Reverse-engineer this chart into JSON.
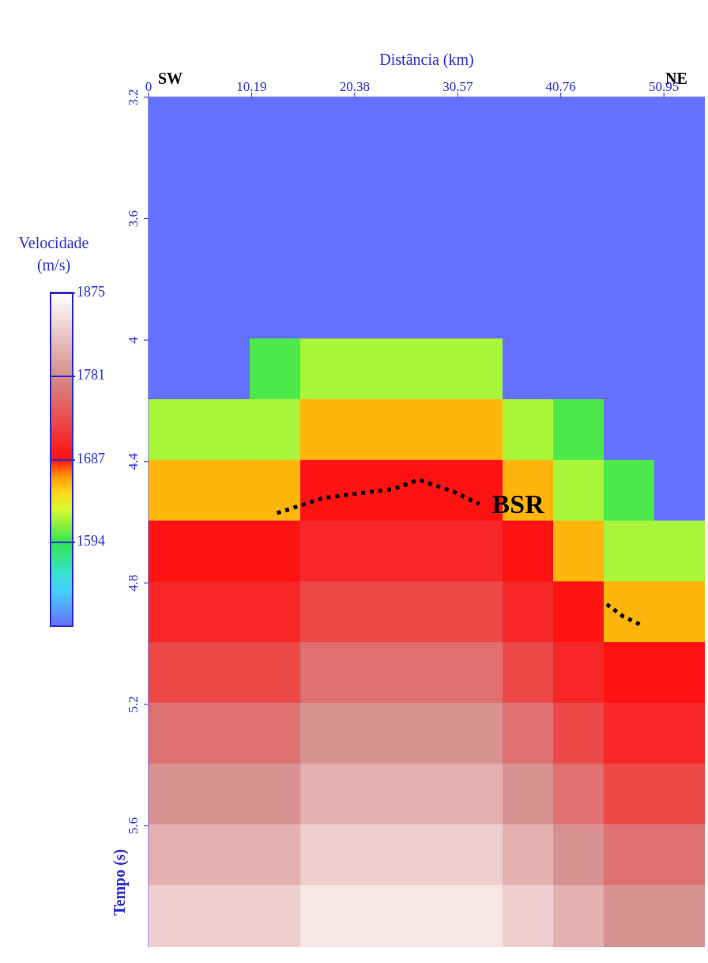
{
  "chart_data": {
    "type": "heatmap",
    "xlabel": "Distância (km)",
    "ylabel": "Tempo (s)",
    "clabel": "Velocidade (m/s)",
    "annotations": [
      "SW",
      "NE"
    ],
    "x": [
      2.5,
      7.5,
      12.5,
      17.5,
      22.5,
      27.5,
      32.5,
      37.5,
      42.5,
      47.5,
      52.5
    ],
    "y": [
      3.3,
      3.5,
      3.7,
      3.9,
      4.1,
      4.3,
      4.5,
      4.7,
      4.9,
      5.1,
      5.3,
      5.5,
      5.7,
      5.9
    ],
    "xlim": [
      0,
      55
    ],
    "xticks": [
      0,
      10.19,
      20.38,
      30.57,
      40.76,
      50.95
    ],
    "ylim": [
      6.0,
      3.2
    ],
    "yticks": [
      3.2,
      3.6,
      4,
      4.4,
      4.8,
      5.2,
      5.6
    ],
    "clim": [
      1500,
      1875
    ],
    "cticks": [
      1594,
      1687,
      1781,
      1875
    ],
    "cells": [
      [
        1500,
        1500,
        1500,
        1500,
        1500,
        1500,
        1500,
        1500,
        1500,
        1500,
        1500
      ],
      [
        1500,
        1500,
        1500,
        1500,
        1500,
        1500,
        1500,
        1500,
        1500,
        1500,
        1500
      ],
      [
        1500,
        1500,
        1500,
        1500,
        1500,
        1500,
        1500,
        1500,
        1500,
        1500,
        1500
      ],
      [
        1500,
        1500,
        1500,
        1500,
        1500,
        1500,
        1500,
        1500,
        1500,
        1500,
        1500
      ],
      [
        1500,
        1500,
        1600,
        1620,
        1620,
        1620,
        1620,
        1500,
        1500,
        1500,
        1500
      ],
      [
        1620,
        1620,
        1620,
        1660,
        1660,
        1660,
        1660,
        1620,
        1600,
        1500,
        1500
      ],
      [
        1660,
        1660,
        1660,
        1690,
        1690,
        1690,
        1690,
        1660,
        1620,
        1600,
        1500
      ],
      [
        1690,
        1690,
        1690,
        1705,
        1705,
        1705,
        1705,
        1690,
        1660,
        1620,
        1620
      ],
      [
        1705,
        1705,
        1705,
        1730,
        1730,
        1730,
        1730,
        1705,
        1690,
        1660,
        1660
      ],
      [
        1730,
        1730,
        1730,
        1760,
        1760,
        1760,
        1760,
        1730,
        1705,
        1690,
        1690
      ],
      [
        1760,
        1760,
        1760,
        1785,
        1785,
        1785,
        1785,
        1760,
        1730,
        1705,
        1705
      ],
      [
        1785,
        1785,
        1785,
        1810,
        1810,
        1810,
        1810,
        1785,
        1760,
        1730,
        1730
      ],
      [
        1810,
        1810,
        1810,
        1835,
        1835,
        1835,
        1835,
        1810,
        1785,
        1760,
        1760
      ],
      [
        1835,
        1835,
        1835,
        1855,
        1855,
        1855,
        1855,
        1835,
        1810,
        1785,
        1785
      ]
    ],
    "series": [
      {
        "name": "BSR",
        "type": "line",
        "color": "#000000",
        "line_style": "dotted",
        "x": [
          12.7,
          17.3,
          24.3,
          26.7,
          30.2,
          32.7
        ],
        "values": [
          4.57,
          4.52,
          4.49,
          4.46,
          4.5,
          4.54
        ]
      },
      {
        "type": "line",
        "color": "#000000",
        "line_style": "dotted",
        "x": [
          45.3,
          46.9,
          48.8
        ],
        "values": [
          4.87,
          4.91,
          4.94
        ]
      }
    ]
  }
}
